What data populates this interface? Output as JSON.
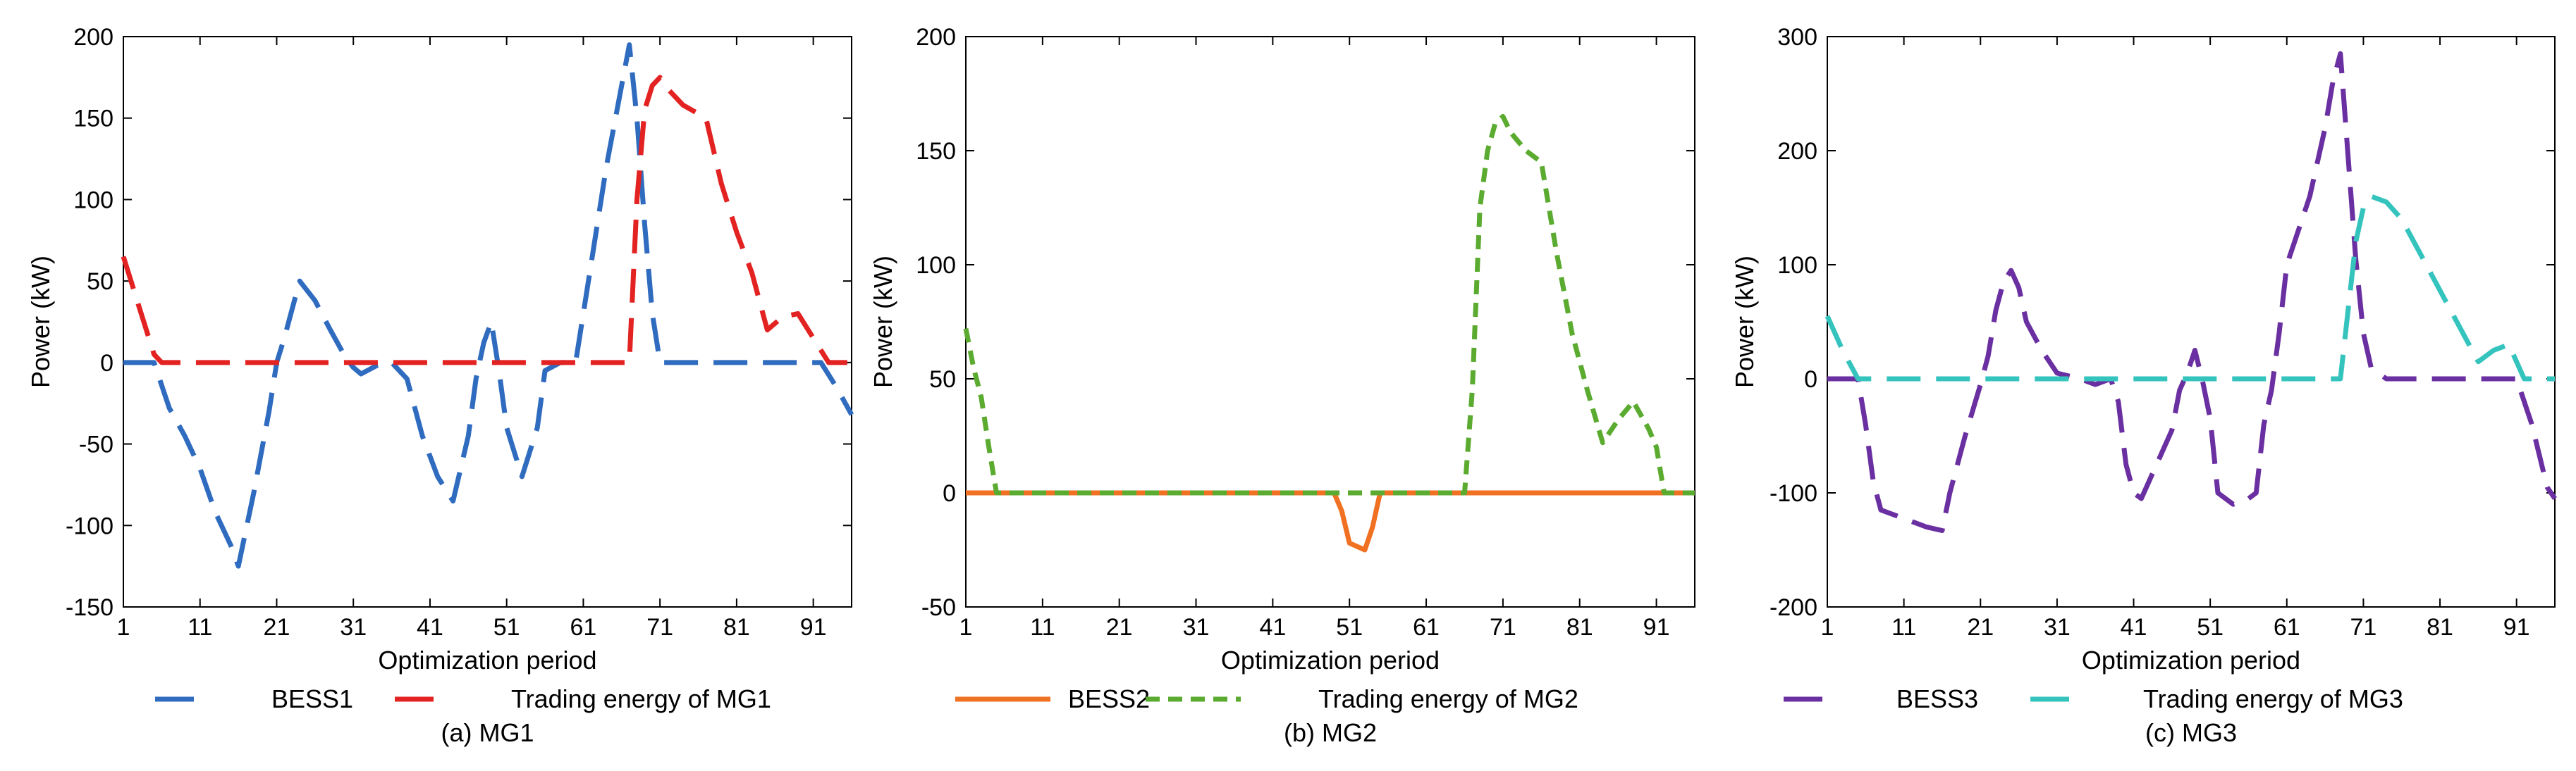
{
  "chart_data": [
    {
      "type": "line",
      "caption": "(a) MG1",
      "xlabel": "Optimization period",
      "ylabel": "Power (kW)",
      "xlim": [
        1,
        96
      ],
      "ylim": [
        -150,
        200
      ],
      "xticks": [
        1,
        11,
        21,
        31,
        41,
        51,
        61,
        71,
        81,
        91
      ],
      "yticks": [
        -150,
        -100,
        -50,
        0,
        50,
        100,
        150,
        200
      ],
      "grid": false,
      "legend": "bottom",
      "series": [
        {
          "name": "BESS1",
          "color": "#2f6bbf",
          "dash": "long-dash",
          "points": [
            [
              1,
              0
            ],
            [
              5,
              0
            ],
            [
              7,
              -28
            ],
            [
              9,
              -45
            ],
            [
              11,
              -65
            ],
            [
              13,
              -92
            ],
            [
              15,
              -112
            ],
            [
              16,
              -125
            ],
            [
              18,
              -80
            ],
            [
              20,
              -30
            ],
            [
              21,
              0
            ],
            [
              22,
              15
            ],
            [
              24,
              50
            ],
            [
              26,
              38
            ],
            [
              28,
              20
            ],
            [
              30,
              3
            ],
            [
              31,
              -3
            ],
            [
              32,
              -7
            ],
            [
              34,
              -2
            ],
            [
              36,
              0
            ],
            [
              38,
              -10
            ],
            [
              40,
              -45
            ],
            [
              42,
              -70
            ],
            [
              44,
              -85
            ],
            [
              46,
              -45
            ],
            [
              47,
              -10
            ],
            [
              48,
              12
            ],
            [
              49,
              25
            ],
            [
              50,
              -5
            ],
            [
              51,
              -40
            ],
            [
              53,
              -70
            ],
            [
              55,
              -40
            ],
            [
              56,
              -5
            ],
            [
              58,
              0
            ],
            [
              60,
              0
            ],
            [
              62,
              60
            ],
            [
              64,
              120
            ],
            [
              66,
              170
            ],
            [
              67,
              195
            ],
            [
              68,
              150
            ],
            [
              69,
              85
            ],
            [
              70,
              30
            ],
            [
              71,
              0
            ],
            [
              80,
              0
            ],
            [
              86,
              0
            ],
            [
              88,
              0
            ],
            [
              92,
              0
            ],
            [
              94,
              -15
            ],
            [
              96,
              -32
            ]
          ]
        },
        {
          "name": "Trading energy of MG1",
          "color": "#e32222",
          "dash": "long-dash",
          "points": [
            [
              1,
              65
            ],
            [
              3,
              35
            ],
            [
              5,
              5
            ],
            [
              6,
              0
            ],
            [
              67,
              0
            ],
            [
              68,
              100
            ],
            [
              69,
              155
            ],
            [
              70,
              170
            ],
            [
              71,
              175
            ],
            [
              72,
              168
            ],
            [
              74,
              158
            ],
            [
              77,
              150
            ],
            [
              79,
              110
            ],
            [
              81,
              80
            ],
            [
              83,
              55
            ],
            [
              85,
              20
            ],
            [
              87,
              28
            ],
            [
              89,
              30
            ],
            [
              91,
              15
            ],
            [
              93,
              0
            ],
            [
              96,
              0
            ]
          ]
        }
      ]
    },
    {
      "type": "line",
      "caption": "(b) MG2",
      "xlabel": "Optimization period",
      "ylabel": "Power (kW)",
      "xlim": [
        1,
        96
      ],
      "ylim": [
        -50,
        200
      ],
      "xticks": [
        1,
        11,
        21,
        31,
        41,
        51,
        61,
        71,
        81,
        91
      ],
      "yticks": [
        -50,
        0,
        50,
        100,
        150,
        200
      ],
      "grid": false,
      "legend": "bottom",
      "series": [
        {
          "name": "BESS2",
          "color": "#f07122",
          "dash": "solid",
          "points": [
            [
              1,
              0
            ],
            [
              49,
              0
            ],
            [
              50,
              -8
            ],
            [
              51,
              -22
            ],
            [
              53,
              -25
            ],
            [
              54,
              -15
            ],
            [
              55,
              0
            ],
            [
              96,
              0
            ]
          ]
        },
        {
          "name": "Trading energy of MG2",
          "color": "#5aab2f",
          "dash": "short-dash",
          "points": [
            [
              1,
              72
            ],
            [
              2,
              55
            ],
            [
              3,
              42
            ],
            [
              4,
              20
            ],
            [
              5,
              0
            ],
            [
              66,
              0
            ],
            [
              67,
              45
            ],
            [
              68,
              125
            ],
            [
              69,
              150
            ],
            [
              70,
              162
            ],
            [
              71,
              165
            ],
            [
              72,
              158
            ],
            [
              74,
              150
            ],
            [
              76,
              145
            ],
            [
              78,
              105
            ],
            [
              80,
              70
            ],
            [
              82,
              45
            ],
            [
              84,
              22
            ],
            [
              86,
              32
            ],
            [
              88,
              40
            ],
            [
              90,
              28
            ],
            [
              91,
              20
            ],
            [
              92,
              0
            ],
            [
              96,
              0
            ]
          ]
        }
      ]
    },
    {
      "type": "line",
      "caption": "(c) MG3",
      "xlabel": "Optimization period",
      "ylabel": "Power (kW)",
      "xlim": [
        1,
        96
      ],
      "ylim": [
        -200,
        300
      ],
      "xticks": [
        1,
        11,
        21,
        31,
        41,
        51,
        61,
        71,
        81,
        91
      ],
      "yticks": [
        -200,
        -100,
        0,
        100,
        200,
        300
      ],
      "grid": false,
      "legend": "bottom",
      "series": [
        {
          "name": "BESS3",
          "color": "#6a2fa0",
          "dash": "long-dash",
          "points": [
            [
              1,
              0
            ],
            [
              5,
              0
            ],
            [
              6,
              -40
            ],
            [
              7,
              -90
            ],
            [
              8,
              -115
            ],
            [
              10,
              -120
            ],
            [
              12,
              -125
            ],
            [
              14,
              -130
            ],
            [
              16,
              -133
            ],
            [
              17,
              -100
            ],
            [
              19,
              -50
            ],
            [
              21,
              -5
            ],
            [
              22,
              20
            ],
            [
              23,
              60
            ],
            [
              24,
              85
            ],
            [
              25,
              95
            ],
            [
              26,
              80
            ],
            [
              27,
              50
            ],
            [
              29,
              25
            ],
            [
              31,
              5
            ],
            [
              34,
              0
            ],
            [
              36,
              -5
            ],
            [
              38,
              0
            ],
            [
              39,
              -20
            ],
            [
              40,
              -75
            ],
            [
              41,
              -100
            ],
            [
              42,
              -105
            ],
            [
              44,
              -75
            ],
            [
              46,
              -45
            ],
            [
              47,
              -10
            ],
            [
              48,
              5
            ],
            [
              49,
              25
            ],
            [
              50,
              -2
            ],
            [
              51,
              -35
            ],
            [
              52,
              -100
            ],
            [
              54,
              -110
            ],
            [
              56,
              -105
            ],
            [
              57,
              -100
            ],
            [
              58,
              -40
            ],
            [
              59,
              -10
            ],
            [
              60,
              40
            ],
            [
              61,
              100
            ],
            [
              62,
              120
            ],
            [
              64,
              160
            ],
            [
              66,
              220
            ],
            [
              67,
              260
            ],
            [
              68,
              285
            ],
            [
              69,
              195
            ],
            [
              70,
              105
            ],
            [
              71,
              40
            ],
            [
              72,
              10
            ],
            [
              74,
              0
            ],
            [
              90,
              0
            ],
            [
              91,
              0
            ],
            [
              93,
              -40
            ],
            [
              95,
              -95
            ],
            [
              96,
              -105
            ]
          ]
        },
        {
          "name": "Trading energy of MG3",
          "color": "#35c4bd",
          "dash": "long-dash",
          "points": [
            [
              1,
              55
            ],
            [
              3,
              25
            ],
            [
              5,
              0
            ],
            [
              68,
              0
            ],
            [
              69,
              60
            ],
            [
              70,
              120
            ],
            [
              71,
              150
            ],
            [
              72,
              160
            ],
            [
              74,
              155
            ],
            [
              76,
              140
            ],
            [
              78,
              115
            ],
            [
              80,
              90
            ],
            [
              82,
              65
            ],
            [
              84,
              40
            ],
            [
              86,
              15
            ],
            [
              88,
              25
            ],
            [
              90,
              30
            ],
            [
              92,
              0
            ],
            [
              96,
              0
            ]
          ]
        }
      ]
    }
  ]
}
